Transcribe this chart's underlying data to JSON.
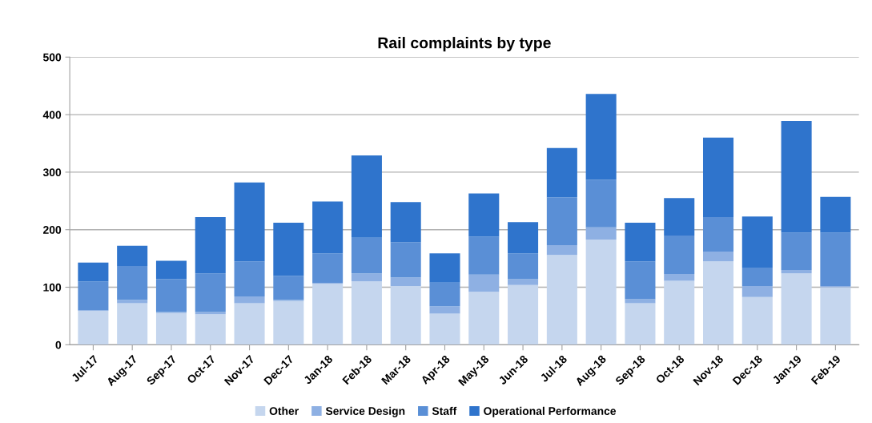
{
  "chart_data": {
    "type": "bar",
    "title": "Rail complaints by type",
    "stacked": true,
    "categories": [
      "Jul-17",
      "Aug-17",
      "Sep-17",
      "Oct-17",
      "Nov-17",
      "Dec-17",
      "Jan-18",
      "Feb-18",
      "Mar-18",
      "Apr-18",
      "May-18",
      "Jun-18",
      "Jul-18",
      "Aug-18",
      "Sep-18",
      "Oct-18",
      "Nov-18",
      "Dec-18",
      "Jan-19",
      "Feb-19"
    ],
    "series": [
      {
        "name": "Other",
        "color": "#c5d6ee",
        "values": [
          59,
          72,
          55,
          53,
          72,
          76,
          106,
          110,
          102,
          54,
          92,
          104,
          156,
          183,
          72,
          111,
          145,
          83,
          124,
          100
        ]
      },
      {
        "name": "Service Design",
        "color": "#8eb0e3",
        "values": [
          1,
          6,
          2,
          4,
          12,
          2,
          1,
          14,
          15,
          13,
          30,
          10,
          17,
          21,
          7,
          12,
          17,
          19,
          6,
          2
        ]
      },
      {
        "name": "Staff",
        "color": "#5a8fd6",
        "values": [
          50,
          59,
          57,
          67,
          61,
          42,
          52,
          62,
          61,
          41,
          66,
          45,
          83,
          83,
          66,
          67,
          60,
          32,
          65,
          93
        ]
      },
      {
        "name": "Operational Performance",
        "color": "#2f74cc",
        "values": [
          33,
          35,
          32,
          98,
          137,
          92,
          90,
          143,
          70,
          51,
          75,
          54,
          86,
          149,
          67,
          65,
          138,
          89,
          194,
          62
        ]
      }
    ],
    "ylim": [
      0,
      500
    ],
    "yticks": [
      0,
      100,
      200,
      300,
      400,
      500
    ],
    "grid": "y",
    "legend": "bottom"
  }
}
